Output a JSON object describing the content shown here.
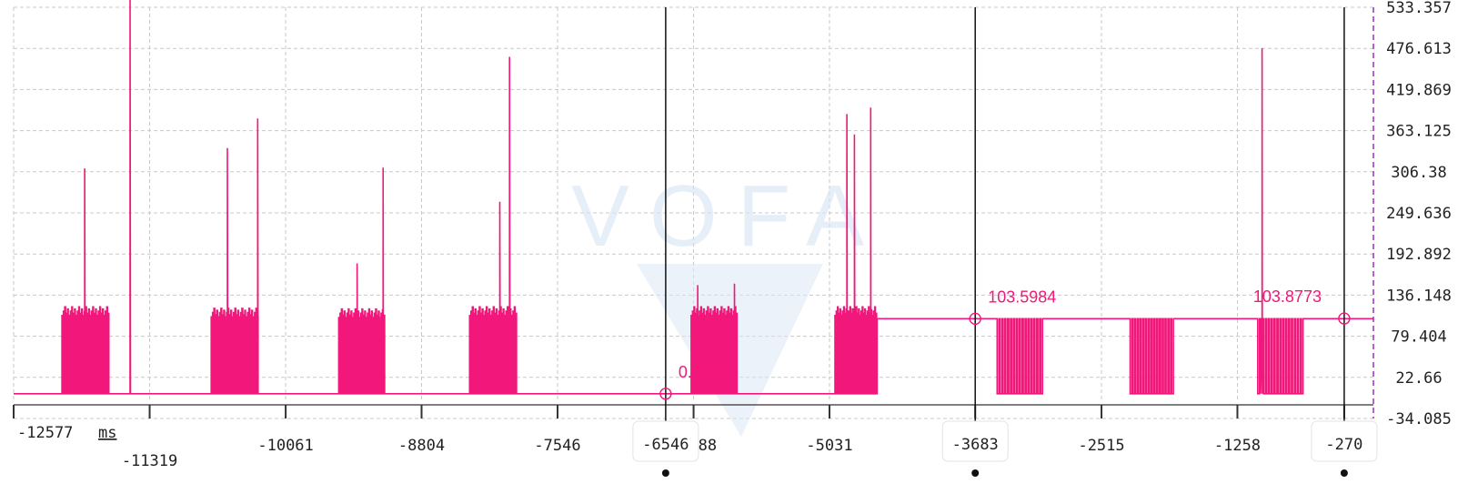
{
  "chart_data": {
    "type": "line",
    "x_unit": "ms",
    "xlim": [
      -12577,
      0
    ],
    "ylim": [
      -34.085,
      533.357
    ],
    "yticks": [
      "533.357",
      "476.613",
      "419.869",
      "363.125",
      "306.38",
      "249.636",
      "192.892",
      "136.148",
      "79.404",
      "22.66",
      "-34.085"
    ],
    "xticks": [
      "-12577",
      "-11319",
      "-10061",
      "-8804",
      "-7546",
      "-6288",
      "-5031",
      "-3683",
      "-2515",
      "-1258",
      "-270"
    ],
    "grid": true,
    "watermark": "VOFA",
    "series": [
      {
        "color": "#f2177a",
        "baseline": 0.1,
        "bursts": [
          {
            "x_start": -12130,
            "x_end": -11690,
            "base": 0.1,
            "high": 120,
            "spikes": [
              [
                -11920,
                311
              ],
              [
                -11500,
                545
              ]
            ]
          },
          {
            "x_start": -10750,
            "x_end": -10310,
            "base": 0.1,
            "high": 118,
            "spikes": [
              [
                -10600,
                339
              ],
              [
                -10320,
                380
              ]
            ]
          },
          {
            "x_start": -9570,
            "x_end": -9140,
            "base": 0.1,
            "high": 117,
            "spikes": [
              [
                -9400,
                180
              ],
              [
                -9160,
                312
              ]
            ]
          },
          {
            "x_start": -8360,
            "x_end": -7920,
            "base": 0.1,
            "high": 120,
            "spikes": [
              [
                -8080,
                265
              ],
              [
                -7990,
                465
              ]
            ]
          },
          {
            "x_start": -6310,
            "x_end": -5880,
            "base": 0.1,
            "high": 120,
            "spikes": [
              [
                -6250,
                150
              ],
              [
                -5910,
                152
              ]
            ]
          },
          {
            "x_start": -4980,
            "x_end": -4590,
            "base": 0.1,
            "high": 120,
            "spikes": [
              [
                -4870,
                386
              ],
              [
                -4800,
                358
              ],
              [
                -4650,
                395
              ]
            ]
          }
        ],
        "steady_segments": [
          {
            "x_start": -4590,
            "x_end": 0,
            "value": 103.6
          }
        ],
        "dips": [
          {
            "x_start": -3480,
            "x_end": -3050,
            "low": 0.1
          },
          {
            "x_start": -2250,
            "x_end": -1840,
            "low": 0.1
          },
          {
            "x_start": -1070,
            "x_end": -640,
            "low": 0.1,
            "spike": [
              -1030,
              477
            ]
          }
        ]
      }
    ],
    "cursors": [
      {
        "x": -6546,
        "label": "-6546",
        "value_label": "0.0997",
        "y": 0.1
      },
      {
        "x": -3683,
        "label": "-3683",
        "value_label": "103.5984",
        "y": 103.6
      },
      {
        "x": -270,
        "label": "-270",
        "value_label": "103.8773",
        "y": 103.88
      }
    ]
  }
}
